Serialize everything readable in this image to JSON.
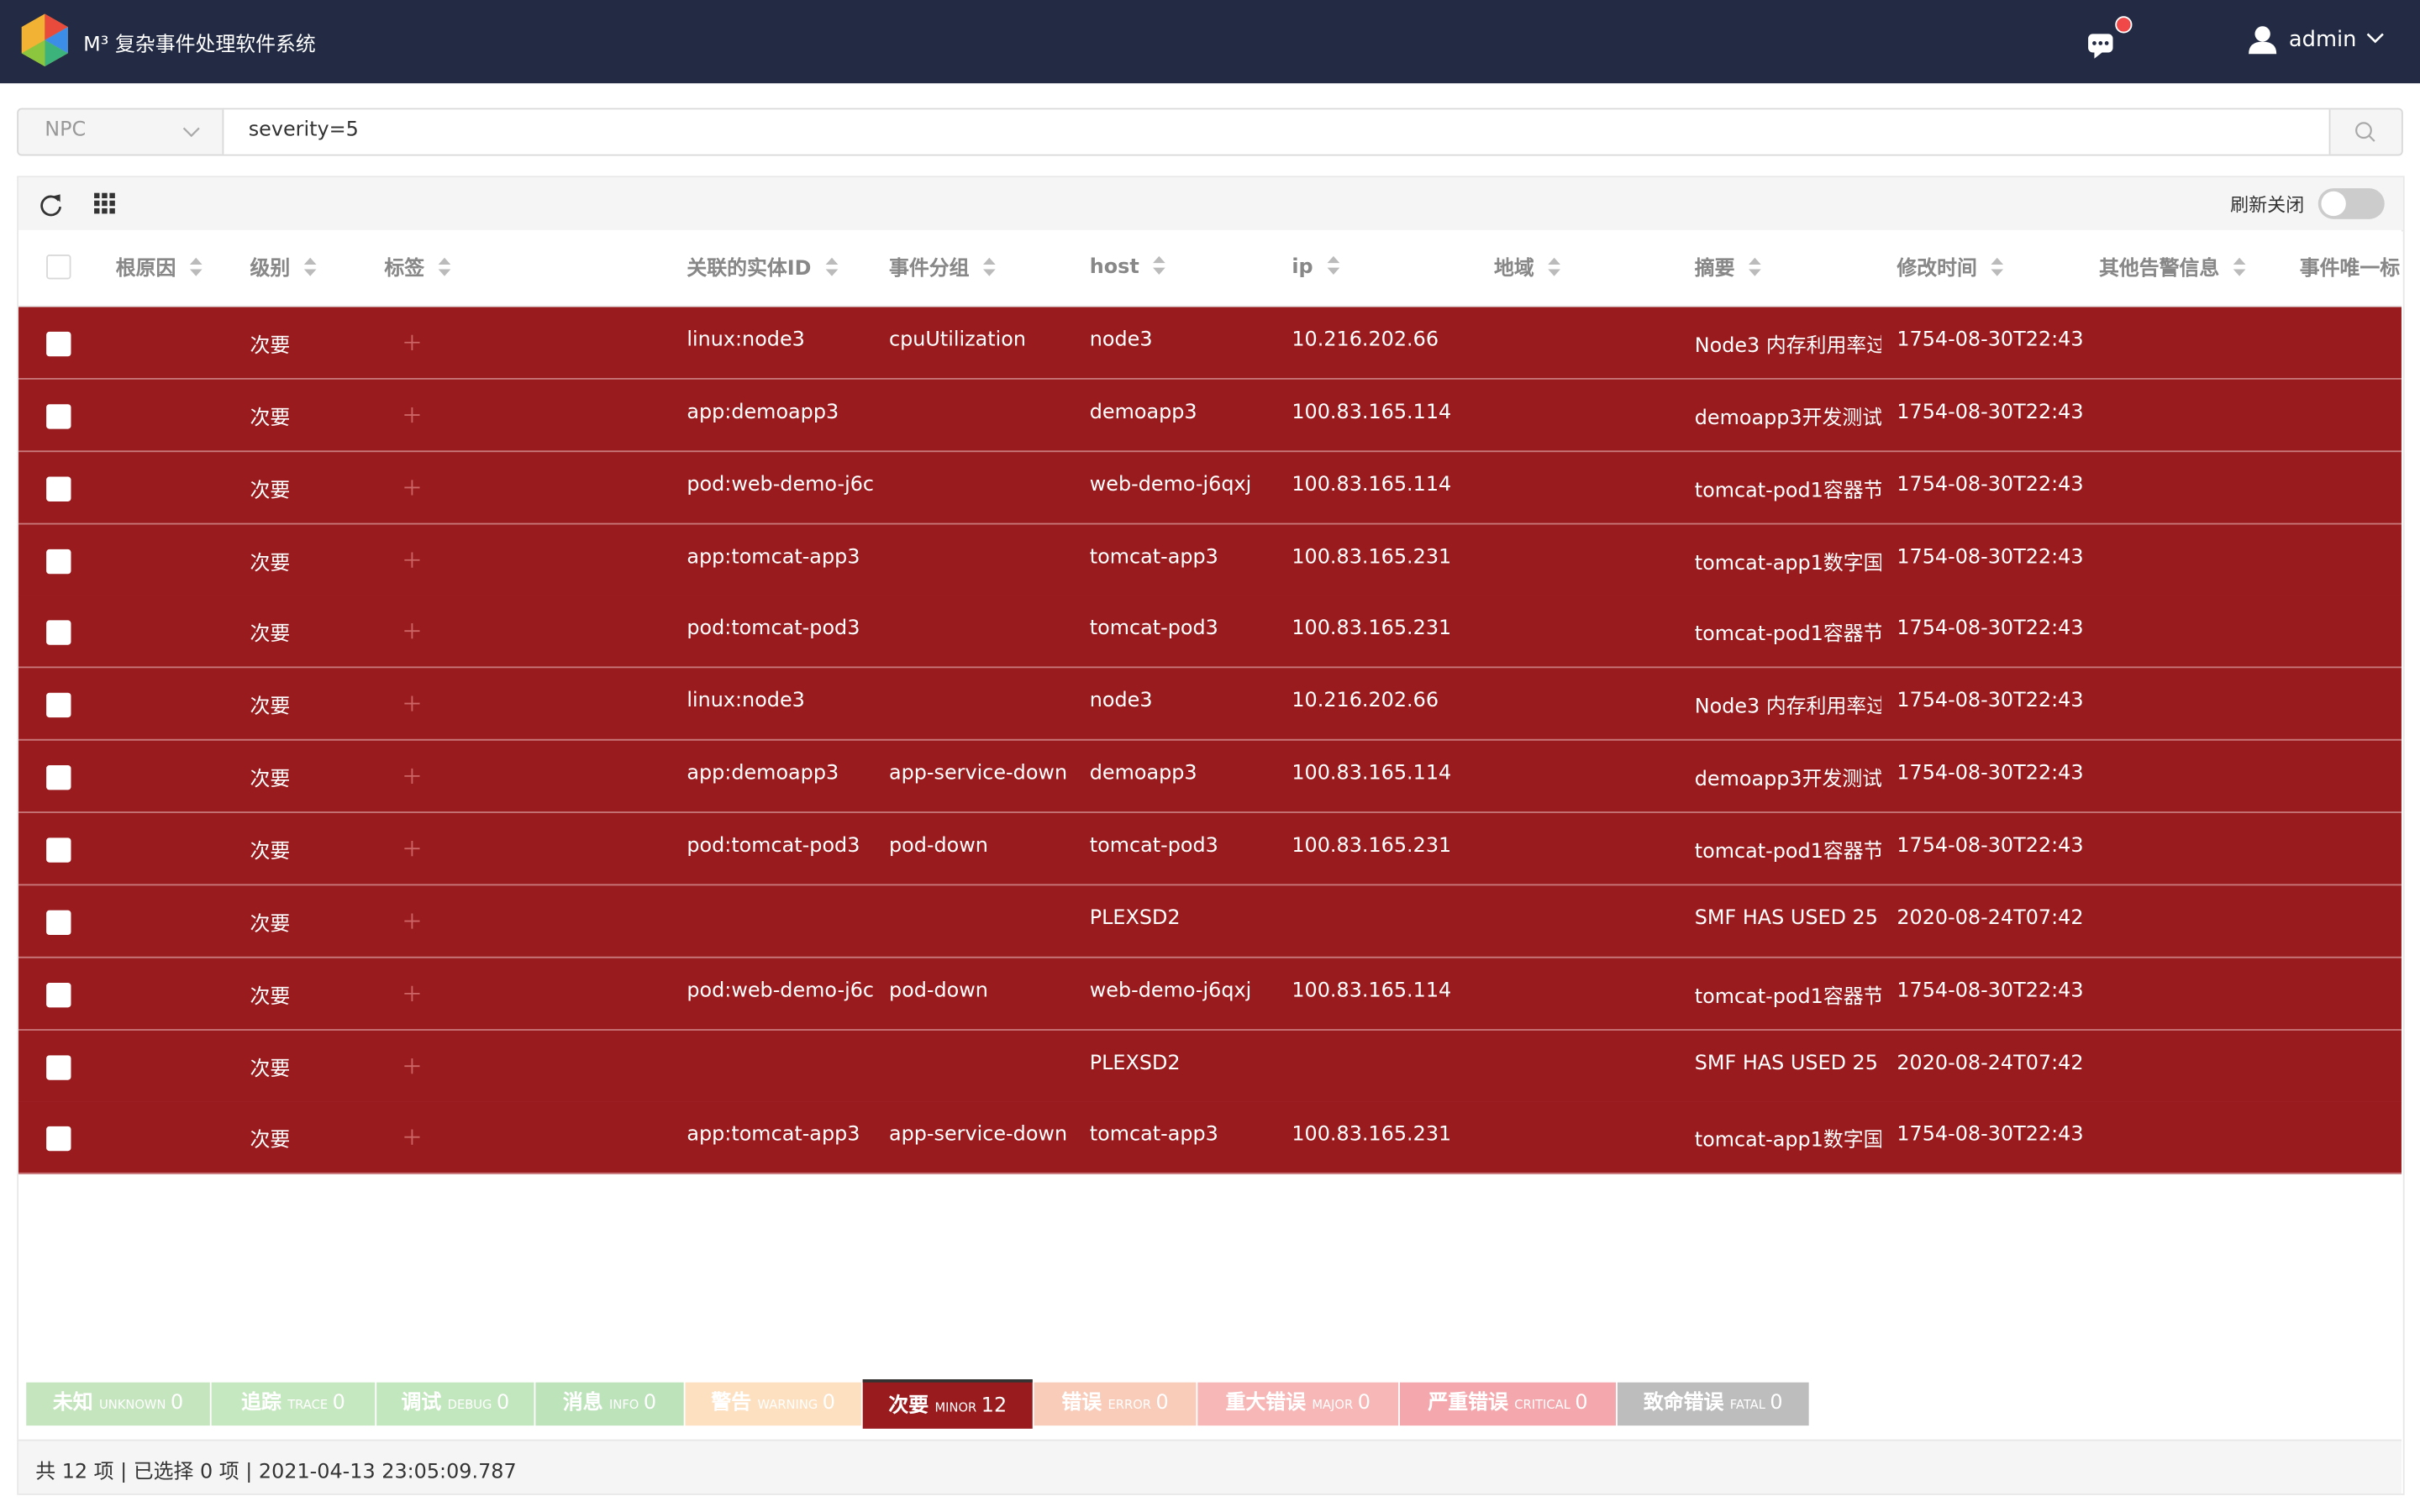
{
  "header": {
    "title": "M³ 复杂事件处理软件系统",
    "user": "admin"
  },
  "search": {
    "source": "NPC",
    "query": "severity=5"
  },
  "toolbar": {
    "refresh_label": "刷新关闭"
  },
  "table": {
    "columns": [
      "根原因",
      "级别",
      "标签",
      "关联的实体ID",
      "事件分组",
      "host",
      "ip",
      "地域",
      "摘要",
      "修改时间",
      "其他告警信息",
      "事件唯一标"
    ],
    "rows": [
      [
        "次要",
        "linux:node3",
        "cpuUtilization",
        "node3",
        "10.216.202.66",
        "Node3 内存利用率过",
        "1754-08-30T22:43"
      ],
      [
        "次要",
        "app:demoapp3",
        null,
        "demoapp3",
        "100.83.165.114",
        "demoapp3开发测试",
        "1754-08-30T22:43"
      ],
      [
        "次要",
        "pod:web-demo-j6c",
        null,
        "web-demo-j6qxj",
        "100.83.165.114",
        "tomcat-pod1容器节",
        "1754-08-30T22:43"
      ],
      [
        "次要",
        "app:tomcat-app3",
        null,
        "tomcat-app3",
        "100.83.165.231",
        "tomcat-app1数字国",
        "1754-08-30T22:43"
      ],
      [
        "次要",
        "pod:tomcat-pod3",
        null,
        "tomcat-pod3",
        "100.83.165.231",
        "tomcat-pod1容器节",
        "1754-08-30T22:43"
      ],
      [
        "次要",
        "linux:node3",
        null,
        "node3",
        "10.216.202.66",
        "Node3 内存利用率过",
        "1754-08-30T22:43"
      ],
      [
        "次要",
        "app:demoapp3",
        "app-service-down",
        "demoapp3",
        "100.83.165.114",
        "demoapp3开发测试",
        "1754-08-30T22:43"
      ],
      [
        "次要",
        "pod:tomcat-pod3",
        "pod-down",
        "tomcat-pod3",
        "100.83.165.231",
        "tomcat-pod1容器节",
        "1754-08-30T22:43"
      ],
      [
        "次要",
        null,
        null,
        "PLEXSD2",
        null,
        "SMF HAS USED 25",
        "2020-08-24T07:42"
      ],
      [
        "次要",
        "pod:web-demo-j6c",
        "pod-down",
        "web-demo-j6qxj",
        "100.83.165.114",
        "tomcat-pod1容器节",
        "1754-08-30T22:43"
      ],
      [
        "次要",
        null,
        null,
        "PLEXSD2",
        null,
        "SMF HAS USED 25",
        "2020-08-24T07:42"
      ],
      [
        "次要",
        "app:tomcat-app3",
        "app-service-down",
        "tomcat-app3",
        "100.83.165.231",
        "tomcat-app1数字国",
        "1754-08-30T22:43"
      ]
    ]
  },
  "severity_bar": [
    {
      "cn": "未知",
      "en": "UNKNOWN",
      "count": 0
    },
    {
      "cn": "追踪",
      "en": "TRACE",
      "count": 0
    },
    {
      "cn": "调试",
      "en": "DEBUG",
      "count": 0
    },
    {
      "cn": "消息",
      "en": "INFO",
      "count": 0
    },
    {
      "cn": "警告",
      "en": "WARNING",
      "count": 0
    },
    {
      "cn": "次要",
      "en": "MINOR",
      "count": 12
    },
    {
      "cn": "错误",
      "en": "ERROR",
      "count": 0
    },
    {
      "cn": "重大错误",
      "en": "MAJOR",
      "count": 0
    },
    {
      "cn": "严重错误",
      "en": "CRITICAL",
      "count": 0
    },
    {
      "cn": "致命错误",
      "en": "FATAL",
      "count": 0
    }
  ],
  "status": "共 12 项 | 已选择 0 项 | 2021-04-13 23:05:09.787"
}
